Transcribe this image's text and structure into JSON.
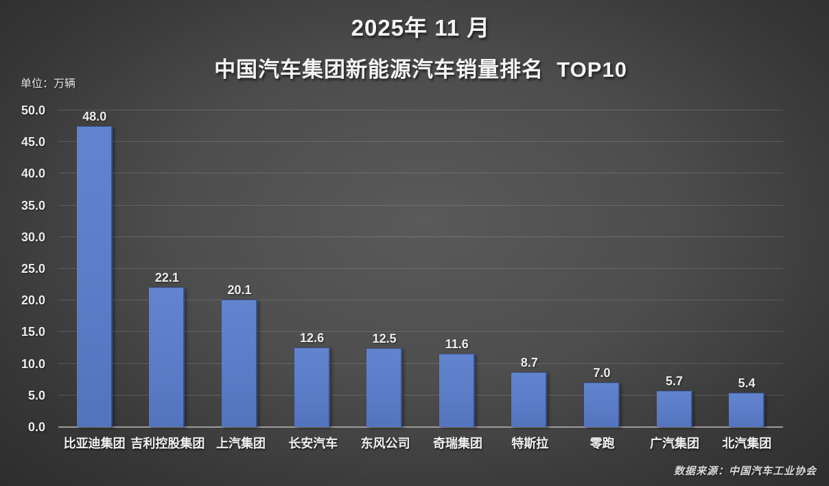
{
  "title": {
    "line1": "2025年 11 月",
    "line2": "中国汽车集团新能源汽车销量排名  TOP10"
  },
  "unit_label": "单位：万辆",
  "source": "数据来源：中国汽车工业协会",
  "colors": {
    "bar": "#5b7cc6",
    "background_center": "#5a5a5a",
    "background_edge": "#292929",
    "text": "#f0f0f0",
    "gridline": "rgba(255,255,255,0.15)",
    "axis_line": "#9d9d9d"
  },
  "chart_data": {
    "type": "bar",
    "title": "2025年 11 月 中国汽车集团新能源汽车销量排名 TOP10",
    "categories": [
      "比亚迪集团",
      "吉利控股集团",
      "上汽集团",
      "长安汽车",
      "东风公司",
      "奇瑞集团",
      "特斯拉",
      "零跑",
      "广汽集团",
      "北汽集团"
    ],
    "values": [
      48.0,
      22.1,
      20.1,
      12.6,
      12.5,
      11.6,
      8.7,
      7.0,
      5.7,
      5.4
    ],
    "value_labels": [
      "48.0",
      "22.1",
      "20.1",
      "12.6",
      "12.5",
      "11.6",
      "8.7",
      "7.0",
      "5.7",
      "5.4"
    ],
    "xlabel": "",
    "ylabel": "万辆",
    "ylim": [
      0,
      50
    ],
    "ytick_labels": [
      "0.0",
      "5.0",
      "10.0",
      "15.0",
      "20.0",
      "25.0",
      "30.0",
      "35.0",
      "40.0",
      "45.0",
      "50.0"
    ],
    "grid": true,
    "legend": false
  }
}
